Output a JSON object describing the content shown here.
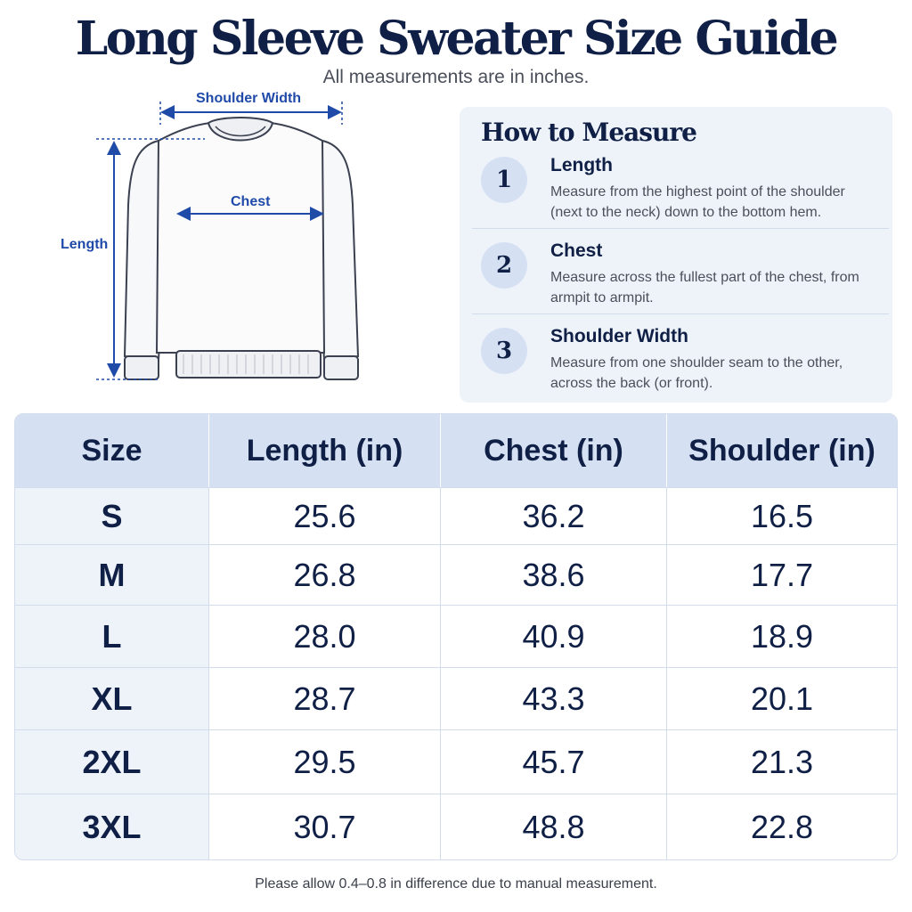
{
  "title": "Long Sleeve Sweater Size Guide",
  "subtitle": "All measurements are in inches.",
  "diagram": {
    "shoulder_label": "Shoulder Width",
    "chest_label": "Chest",
    "length_label": "Length"
  },
  "how_to": {
    "title": "How to Measure",
    "steps": [
      {
        "num": "1",
        "name": "Length",
        "desc": "Measure from the highest point of the shoulder (next to the neck) down to the bottom hem."
      },
      {
        "num": "2",
        "name": "Chest",
        "desc": "Measure across the fullest part of the chest, from armpit to armpit."
      },
      {
        "num": "3",
        "name": "Shoulder Width",
        "desc": "Measure from one shoulder seam to the other, across the back (or front)."
      }
    ]
  },
  "table": {
    "headers": [
      "Size",
      "Length (in)",
      "Chest (in)",
      "Shoulder (in)"
    ],
    "rows": [
      [
        "S",
        "25.6",
        "36.2",
        "16.5"
      ],
      [
        "M",
        "26.8",
        "38.6",
        "17.7"
      ],
      [
        "L",
        "28.0",
        "40.9",
        "18.9"
      ],
      [
        "XL",
        "28.7",
        "43.3",
        "20.1"
      ],
      [
        "2XL",
        "29.5",
        "45.7",
        "21.3"
      ],
      [
        "3XL",
        "30.7",
        "48.8",
        "22.8"
      ]
    ]
  },
  "footnote": "Please allow 0.4–0.8 in difference due to manual measurement.",
  "colors": {
    "navy": "#0f1f45",
    "accent_blue": "#1f4aa8",
    "panel_bg": "#eef3fa",
    "header_bg": "#d5e1f2"
  }
}
